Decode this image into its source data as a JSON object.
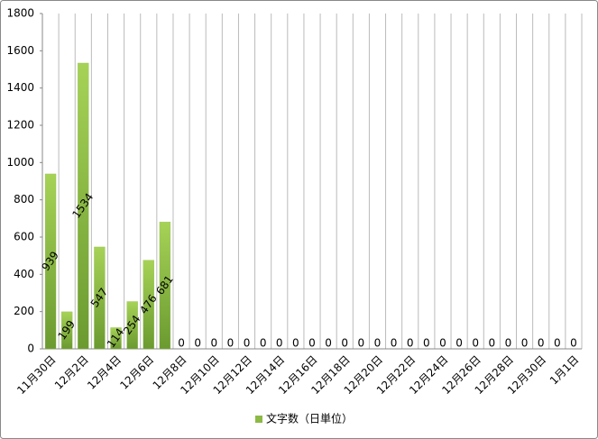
{
  "chart_data": {
    "type": "bar",
    "categories": [
      "11月30日",
      null,
      "12月2日",
      null,
      "12月4日",
      null,
      "12月6日",
      null,
      "12月8日",
      null,
      "12月10日",
      null,
      "12月12日",
      null,
      "12月14日",
      null,
      "12月16日",
      null,
      "12月18日",
      null,
      "12月20日",
      null,
      "12月22日",
      null,
      "12月24日",
      null,
      "12月26日",
      null,
      "12月28日",
      null,
      "12月30日",
      null,
      "1月1日"
    ],
    "series": [
      {
        "name": "文字数（日単位）",
        "color": "#8cba45",
        "values": [
          939,
          199,
          1534,
          547,
          114,
          254,
          476,
          681,
          0,
          0,
          0,
          0,
          0,
          0,
          0,
          0,
          0,
          0,
          0,
          0,
          0,
          0,
          0,
          0,
          0,
          0,
          0,
          0,
          0,
          0,
          0,
          0,
          0
        ]
      }
    ],
    "ylim": [
      0,
      1800
    ],
    "yticks": [
      0,
      200,
      400,
      600,
      800,
      1000,
      1200,
      1400,
      1600,
      1800
    ],
    "legend": "bottom"
  }
}
